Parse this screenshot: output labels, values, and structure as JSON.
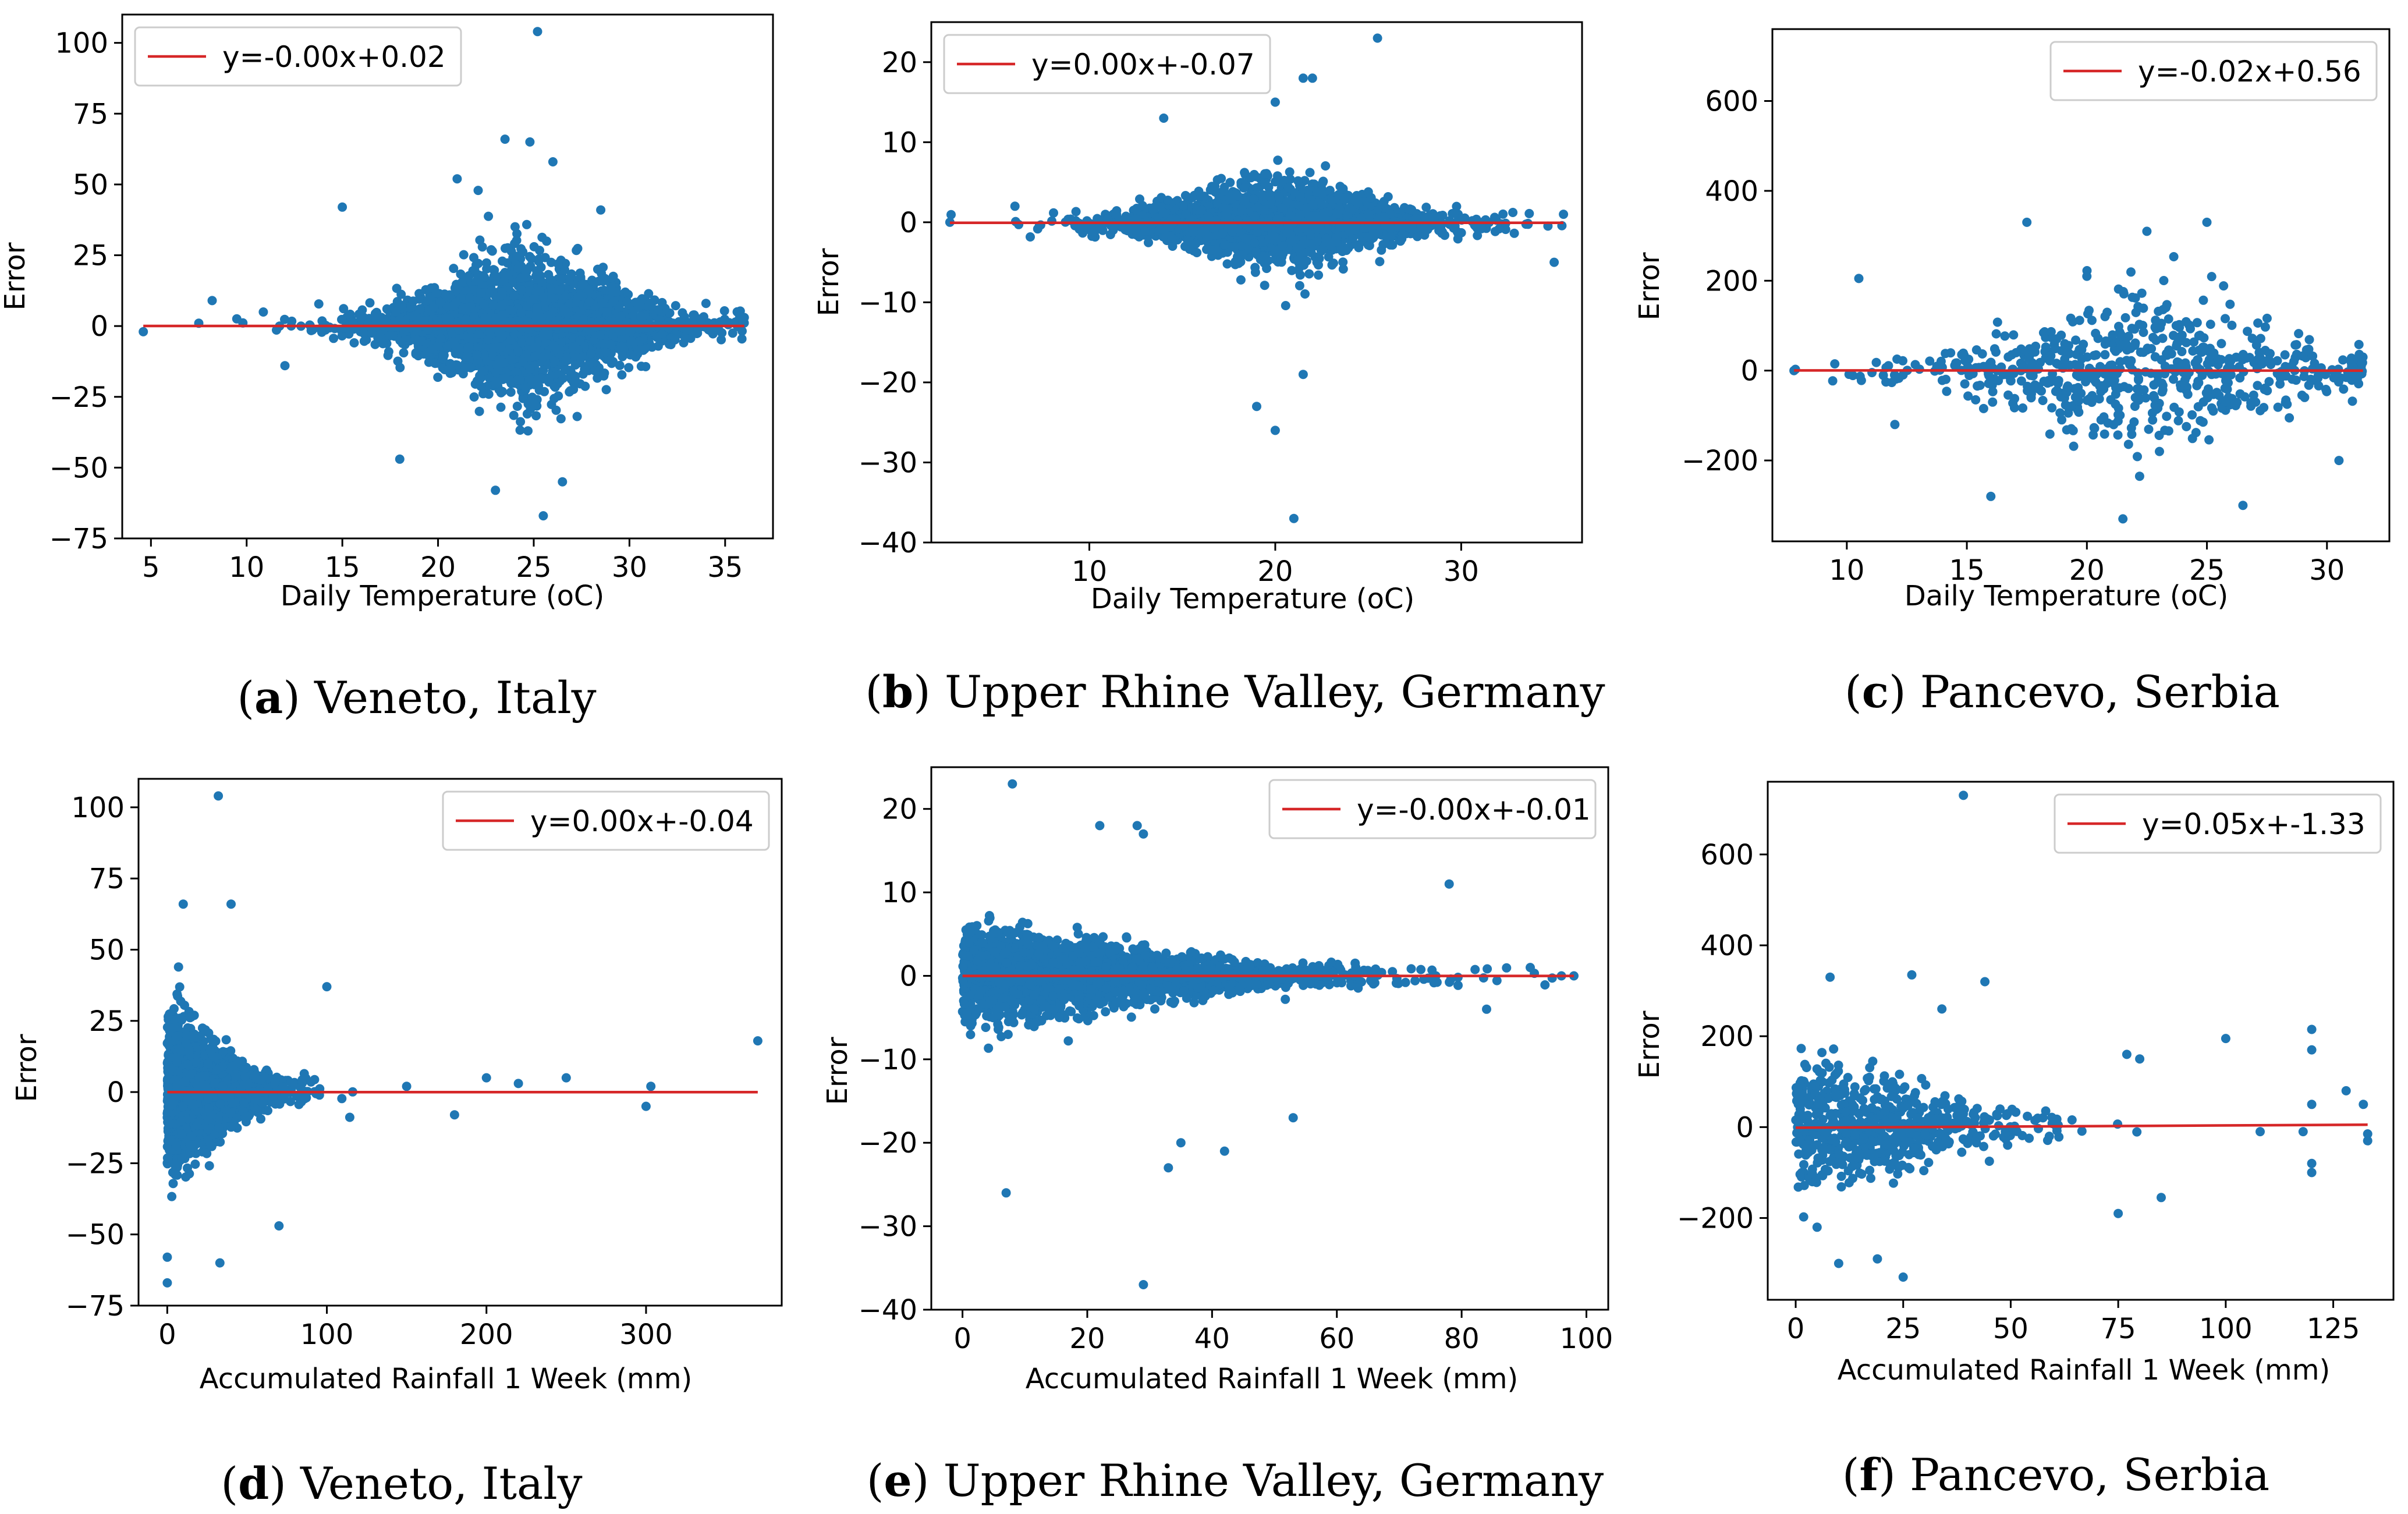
{
  "figure": {
    "colors": {
      "points": "#1f77b4",
      "fit_line": "#d62728",
      "frame": "#000000",
      "legend_border": "#cccccc"
    }
  },
  "chart_data": [
    {
      "id": "a",
      "type": "scatter",
      "xlabel": "Daily Temperature (oC)",
      "ylabel": "Error",
      "xlim": [
        3.5,
        37.5
      ],
      "ylim": [
        -75,
        110
      ],
      "xticks": [
        5,
        10,
        15,
        20,
        25,
        30,
        35
      ],
      "xtick_labels": [
        "5",
        "10",
        "15",
        "20",
        "25",
        "30",
        "35"
      ],
      "yticks": [
        -75,
        -50,
        -25,
        0,
        25,
        50,
        75,
        100
      ],
      "ytick_labels": [
        "−75",
        "−50",
        "−25",
        "0",
        "25",
        "50",
        "75",
        "100"
      ],
      "legend": {
        "label": "y=-0.00x+0.02",
        "placement": "top-left"
      },
      "fit": {
        "slope": 0.0,
        "intercept": 0.02,
        "x_range": [
          4.6,
          36.0
        ]
      },
      "cloud": {
        "x_min": 4.6,
        "x_max": 36.0,
        "x_center": 24.5,
        "x_spread": 4.2,
        "y_spread": 12,
        "n": 2600
      },
      "notable_points": [
        [
          25.2,
          104
        ],
        [
          23.5,
          66
        ],
        [
          24.8,
          65
        ],
        [
          26.0,
          58
        ],
        [
          25.5,
          -67
        ],
        [
          23.0,
          -58
        ],
        [
          26.5,
          -55
        ],
        [
          18.0,
          -47
        ],
        [
          21.0,
          52
        ],
        [
          28.5,
          41
        ],
        [
          15.0,
          42
        ],
        [
          8.2,
          9
        ],
        [
          4.6,
          -2
        ],
        [
          7.5,
          1
        ],
        [
          36.0,
          3
        ],
        [
          34.0,
          8
        ],
        [
          12.0,
          -14
        ]
      ],
      "caption": {
        "letter": "a",
        "text": ") Veneto, Italy"
      }
    },
    {
      "id": "b",
      "type": "scatter",
      "xlabel": "Daily Temperature (oC)",
      "ylabel": "Error",
      "xlim": [
        1.5,
        36.5
      ],
      "ylim": [
        -40,
        25
      ],
      "xticks": [
        10,
        20,
        30
      ],
      "xtick_labels": [
        "10",
        "20",
        "30"
      ],
      "yticks": [
        -40,
        -30,
        -20,
        -10,
        0,
        10,
        20
      ],
      "ytick_labels": [
        "−40",
        "−30",
        "−20",
        "−10",
        "0",
        "10",
        "20"
      ],
      "legend": {
        "label": "y=0.00x+-0.07",
        "placement": "top-left"
      },
      "fit": {
        "slope": 0.0,
        "intercept": -0.07,
        "x_range": [
          2.5,
          35.5
        ]
      },
      "cloud": {
        "x_min": 2.5,
        "x_max": 35.5,
        "x_center": 20,
        "x_spread": 4.5,
        "y_spread": 2.6,
        "n": 2200
      },
      "notable_points": [
        [
          25.5,
          23
        ],
        [
          21.5,
          18
        ],
        [
          22.0,
          18
        ],
        [
          17.0,
          17
        ],
        [
          20.0,
          15
        ],
        [
          21.0,
          -37
        ],
        [
          20.0,
          -26
        ],
        [
          19.0,
          -23
        ],
        [
          21.5,
          -19
        ],
        [
          2.5,
          0
        ],
        [
          6.0,
          2
        ],
        [
          35.5,
          1
        ],
        [
          35.0,
          -5
        ],
        [
          14.0,
          13
        ]
      ],
      "caption": {
        "letter": "b",
        "text": ") Upper Rhine Valley, Germany"
      }
    },
    {
      "id": "c",
      "type": "scatter",
      "xlabel": "Daily Temperature (oC)",
      "ylabel": "Error",
      "xlim": [
        6.9,
        32.6
      ],
      "ylim": [
        -380,
        760
      ],
      "xticks": [
        10,
        15,
        20,
        25,
        30
      ],
      "xtick_labels": [
        "10",
        "15",
        "20",
        "25",
        "30"
      ],
      "yticks": [
        -200,
        0,
        200,
        400,
        600
      ],
      "ytick_labels": [
        "−200",
        "0",
        "200",
        "400",
        "600"
      ],
      "legend": {
        "label": "y=-0.02x+0.56",
        "placement": "top-right"
      },
      "fit": {
        "slope": -0.02,
        "intercept": 0.56,
        "x_range": [
          7.8,
          31.5
        ]
      },
      "cloud": {
        "x_min": 7.8,
        "x_max": 31.5,
        "x_center": 22.5,
        "x_spread": 5.0,
        "y_spread": 80,
        "n": 650
      },
      "notable_points": [
        [
          10.5,
          205
        ],
        [
          17.5,
          330
        ],
        [
          25.0,
          330
        ],
        [
          20.0,
          210
        ],
        [
          22.5,
          310
        ],
        [
          21.5,
          -330
        ],
        [
          26.5,
          -300
        ],
        [
          16.0,
          -280
        ],
        [
          7.8,
          0
        ],
        [
          9.5,
          15
        ],
        [
          31.5,
          30
        ],
        [
          30.5,
          -200
        ],
        [
          12.0,
          -120
        ]
      ],
      "caption": {
        "letter": "c",
        "text": ") Pancevo, Serbia"
      }
    },
    {
      "id": "d",
      "type": "scatter",
      "xlabel": "Accumulated Rainfall 1 Week (mm)",
      "ylabel": "Error",
      "xlim": [
        -18,
        385
      ],
      "ylim": [
        -75,
        110
      ],
      "xticks": [
        0,
        100,
        200,
        300
      ],
      "xtick_labels": [
        "0",
        "100",
        "200",
        "300"
      ],
      "yticks": [
        -75,
        -50,
        -25,
        0,
        25,
        50,
        75,
        100
      ],
      "ytick_labels": [
        "−75",
        "−50",
        "−25",
        "0",
        "25",
        "50",
        "75",
        "100"
      ],
      "legend": {
        "label": "y=0.00x+-0.04",
        "placement": "top-right"
      },
      "fit": {
        "slope": 0.0,
        "intercept": -0.04,
        "x_range": [
          0,
          370
        ]
      },
      "cloud": {
        "x_min": 0,
        "x_max": 370,
        "x_center": 0,
        "x_spread": 30,
        "y_spread": 12,
        "n": 2600
      },
      "notable_points": [
        [
          32,
          104
        ],
        [
          10,
          66
        ],
        [
          40,
          66
        ],
        [
          0,
          -67
        ],
        [
          0,
          -58
        ],
        [
          33,
          -60
        ],
        [
          70,
          -47
        ],
        [
          100,
          37
        ],
        [
          370,
          18
        ],
        [
          300,
          -5
        ],
        [
          303,
          2
        ],
        [
          250,
          5
        ],
        [
          220,
          3
        ],
        [
          200,
          5
        ],
        [
          180,
          -8
        ],
        [
          150,
          2
        ]
      ],
      "caption": {
        "letter": "d",
        "text": ") Veneto, Italy"
      }
    },
    {
      "id": "e",
      "type": "scatter",
      "xlabel": "Accumulated Rainfall 1 Week (mm)",
      "ylabel": "Error",
      "xlim": [
        -5,
        103.5
      ],
      "ylim": [
        -40,
        25
      ],
      "xticks": [
        0,
        20,
        40,
        60,
        80,
        100
      ],
      "xtick_labels": [
        "0",
        "20",
        "40",
        "60",
        "80",
        "100"
      ],
      "yticks": [
        -40,
        -30,
        -20,
        -10,
        0,
        10,
        20
      ],
      "ytick_labels": [
        "−40",
        "−30",
        "−20",
        "−10",
        "0",
        "10",
        "20"
      ],
      "legend": {
        "label": "y=-0.00x+-0.01",
        "placement": "top-right"
      },
      "fit": {
        "slope": 0.0,
        "intercept": -0.01,
        "x_range": [
          0,
          98
        ]
      },
      "cloud": {
        "x_min": 0,
        "x_max": 98,
        "x_center": 0,
        "x_spread": 28,
        "y_spread": 2.6,
        "n": 2200
      },
      "notable_points": [
        [
          8,
          23
        ],
        [
          22,
          18
        ],
        [
          28,
          18
        ],
        [
          29,
          17
        ],
        [
          29,
          -37
        ],
        [
          7,
          -26
        ],
        [
          35,
          -20
        ],
        [
          33,
          -23
        ],
        [
          42,
          -21
        ],
        [
          53,
          -17
        ],
        [
          78,
          11
        ],
        [
          98,
          0
        ],
        [
          96,
          0
        ],
        [
          91,
          1
        ],
        [
          84,
          -4
        ]
      ],
      "caption": {
        "letter": "e",
        "text": ") Upper Rhine Valley, Germany"
      }
    },
    {
      "id": "f",
      "type": "scatter",
      "xlabel": "Accumulated Rainfall 1 Week (mm)",
      "ylabel": "Error",
      "xlim": [
        -6.5,
        139
      ],
      "ylim": [
        -380,
        760
      ],
      "xticks": [
        0,
        25,
        50,
        75,
        100,
        125
      ],
      "xtick_labels": [
        "0",
        "25",
        "50",
        "75",
        "100",
        "125"
      ],
      "yticks": [
        -200,
        0,
        200,
        400,
        600
      ],
      "ytick_labels": [
        "−200",
        "0",
        "200",
        "400",
        "600"
      ],
      "legend": {
        "label": "y=0.05x+-1.33",
        "placement": "top-right"
      },
      "fit": {
        "slope": 0.05,
        "intercept": -1.33,
        "x_range": [
          0,
          133
        ]
      },
      "cloud": {
        "x_min": 0,
        "x_max": 85,
        "x_center": 0,
        "x_spread": 25,
        "y_spread": 75,
        "n": 650
      },
      "notable_points": [
        [
          39,
          730
        ],
        [
          8,
          330
        ],
        [
          27,
          335
        ],
        [
          44,
          320
        ],
        [
          34,
          260
        ],
        [
          25,
          -330
        ],
        [
          10,
          -300
        ],
        [
          19,
          -290
        ],
        [
          100,
          195
        ],
        [
          120,
          215
        ],
        [
          120,
          170
        ],
        [
          120,
          50
        ],
        [
          120,
          -80
        ],
        [
          120,
          -100
        ],
        [
          118,
          -10
        ],
        [
          128,
          80
        ],
        [
          132,
          50
        ],
        [
          133,
          -30
        ],
        [
          133,
          -15
        ],
        [
          108,
          -10
        ],
        [
          75,
          -190
        ],
        [
          85,
          -155
        ],
        [
          77,
          160
        ],
        [
          80,
          150
        ]
      ],
      "caption": {
        "letter": "f",
        "text": ") Pancevo, Serbia"
      }
    }
  ]
}
